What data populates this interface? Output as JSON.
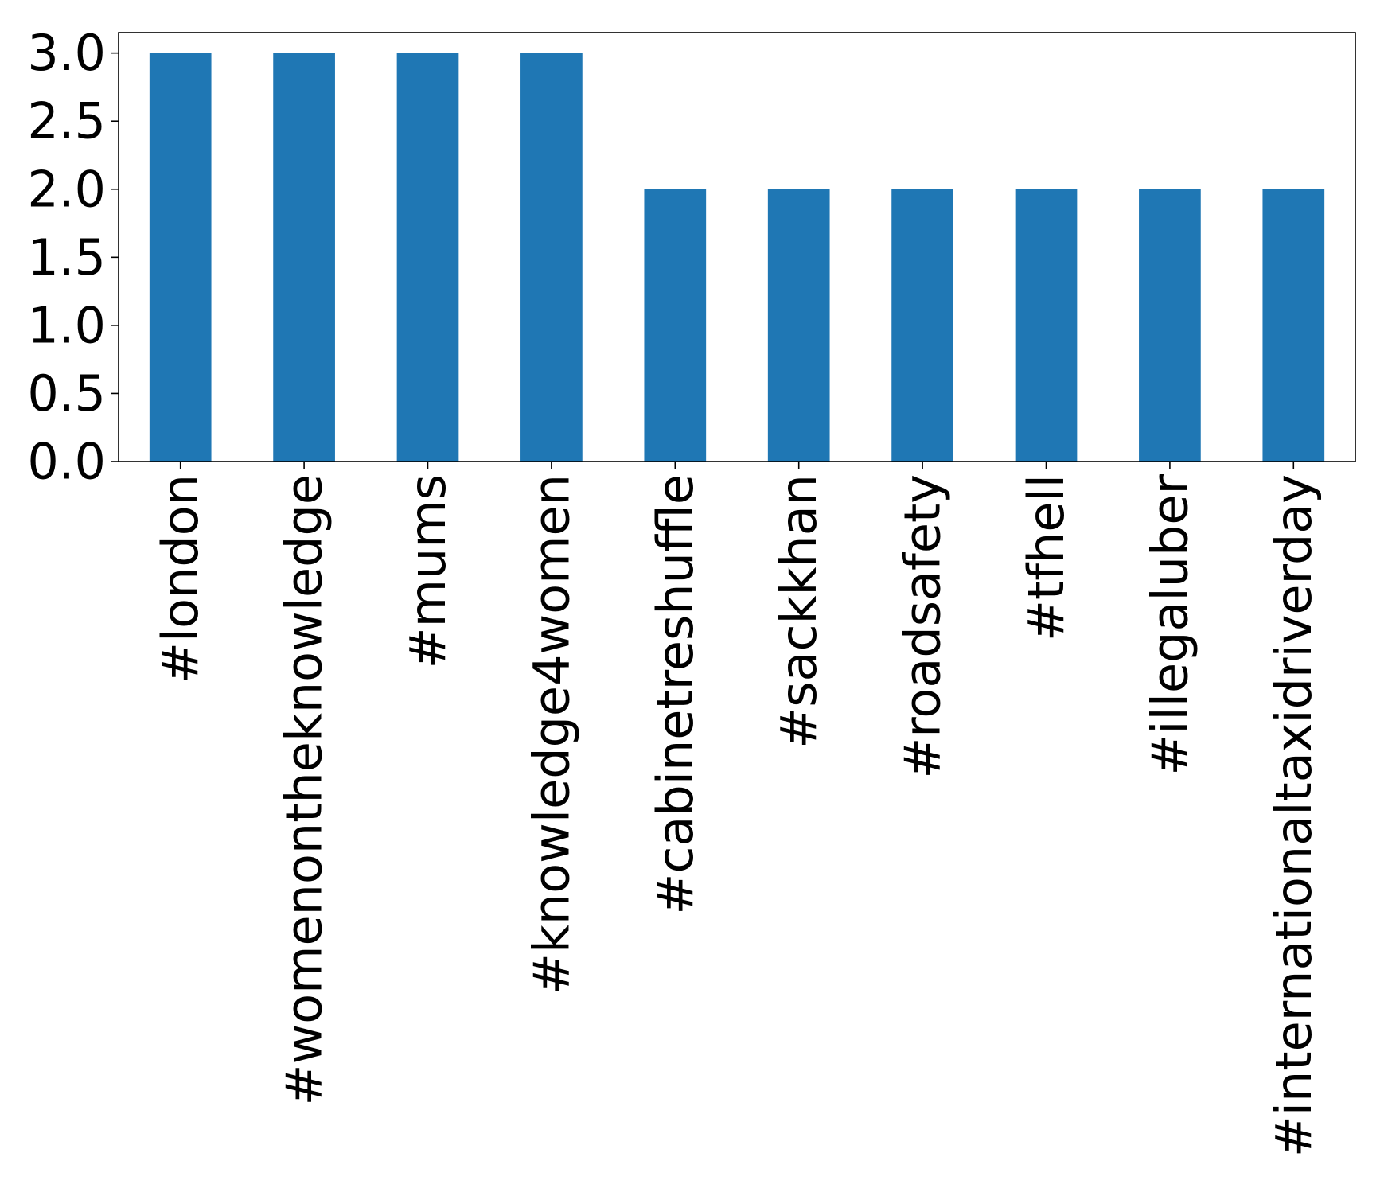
{
  "chart_data": {
    "type": "bar",
    "title": "",
    "xlabel": "",
    "ylabel": "",
    "categories": [
      "#london",
      "#womenontheknowledge",
      "#mums",
      "#knowledge4women",
      "#cabinetreshuffle",
      "#sackkhan",
      "#roadsafety",
      "#tfhell",
      "#illegaluber",
      "#internationaltaxidriverday"
    ],
    "values": [
      3,
      3,
      3,
      3,
      2,
      2,
      2,
      2,
      2,
      2
    ],
    "ylim": [
      0,
      3.15
    ],
    "yticks": [
      0.0,
      0.5,
      1.0,
      1.5,
      2.0,
      2.5,
      3.0
    ],
    "ytick_labels": [
      "0.0",
      "0.5",
      "1.0",
      "1.5",
      "2.0",
      "2.5",
      "3.0"
    ],
    "xtick_rotation": "vertical",
    "grid": false,
    "legend": "none",
    "bar_color": "#1f77b4"
  }
}
